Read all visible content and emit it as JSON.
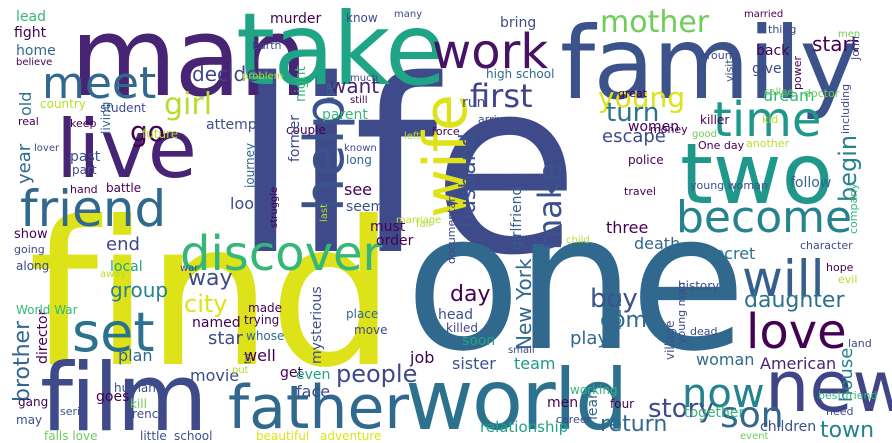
{
  "words": [
    {
      "id": "life",
      "text": "life",
      "color": "#3e4a89"
    },
    {
      "id": "find",
      "text": "find",
      "color": "#dde318"
    },
    {
      "id": "one",
      "text": "one",
      "color": "#31688e"
    },
    {
      "id": "man",
      "text": "man",
      "color": "#482475"
    },
    {
      "id": "take",
      "text": "take",
      "color": "#20a486"
    },
    {
      "id": "family",
      "text": "family",
      "color": "#3b528b"
    },
    {
      "id": "work",
      "text": "work",
      "color": "#471164"
    },
    {
      "id": "world",
      "text": "world",
      "color": "#2c728e"
    },
    {
      "id": "film",
      "text": "film",
      "color": "#3e4a89"
    },
    {
      "id": "father",
      "text": "father",
      "color": "#31688e"
    },
    {
      "id": "two",
      "text": "two",
      "color": "#1f988b"
    },
    {
      "id": "live",
      "text": "live",
      "color": "#482475"
    },
    {
      "id": "wife",
      "text": "wife",
      "color": "#dde318"
    },
    {
      "id": "become",
      "text": "become",
      "color": "#26828e"
    },
    {
      "id": "friend",
      "text": "friend",
      "color": "#31688e"
    },
    {
      "id": "new",
      "text": "new",
      "color": "#414487"
    },
    {
      "id": "meet",
      "text": "meet",
      "color": "#31688e"
    },
    {
      "id": "time",
      "text": "time",
      "color": "#1f988b"
    },
    {
      "id": "help",
      "text": "help",
      "color": "#3b528b"
    },
    {
      "id": "discover",
      "text": "discover",
      "color": "#35b779"
    },
    {
      "id": "set",
      "text": "set",
      "color": "#2c728e"
    },
    {
      "id": "love",
      "text": "love",
      "color": "#440154"
    },
    {
      "id": "will",
      "text": "will",
      "color": "#355f8d"
    },
    {
      "id": "now",
      "text": "now",
      "color": "#26828e"
    },
    {
      "id": "first",
      "text": "first",
      "color": "#414487"
    },
    {
      "id": "mother",
      "text": "mother",
      "color": "#6ece58"
    },
    {
      "id": "make",
      "text": "make",
      "color": "#3b528b"
    },
    {
      "id": "young",
      "text": "young",
      "color": "#dde318"
    },
    {
      "id": "son",
      "text": "son",
      "color": "#31688e"
    },
    {
      "id": "girl",
      "text": "girl",
      "color": "#b5de2b"
    },
    {
      "id": "people",
      "text": "people",
      "color": "#3e4a89"
    },
    {
      "id": "begin",
      "text": "begin",
      "color": "#26828e"
    },
    {
      "id": "daughter",
      "text": "daughter",
      "color": "#2c728e"
    },
    {
      "id": "story",
      "text": "story",
      "color": "#3e4a89"
    },
    {
      "id": "turn",
      "text": "turn",
      "color": "#2c728e"
    },
    {
      "id": "city",
      "text": "city",
      "color": "#dde318"
    },
    {
      "id": "way",
      "text": "way",
      "color": "#3e4a89"
    },
    {
      "id": "group",
      "text": "group",
      "color": "#26828e"
    },
    {
      "id": "brother",
      "text": "brother",
      "color": "#31688e"
    },
    {
      "id": "boy",
      "text": "boy",
      "color": "#3b528b"
    },
    {
      "id": "return",
      "text": "return",
      "color": "#31688e"
    },
    {
      "id": "town",
      "text": "town",
      "color": "#26828e"
    },
    {
      "id": "house",
      "text": "house",
      "color": "#26828e"
    },
    {
      "id": "husband",
      "text": "husband",
      "color": "#3b528b"
    },
    {
      "id": "new-york",
      "text": "New York",
      "color": "#31688e"
    },
    {
      "id": "day",
      "text": "day",
      "color": "#440154"
    },
    {
      "id": "come",
      "text": "come",
      "color": "#31688e"
    },
    {
      "id": "woman",
      "text": "woman",
      "color": "#31688e"
    },
    {
      "id": "want",
      "text": "want",
      "color": "#482475"
    },
    {
      "id": "decide",
      "text": "decide",
      "color": "#414487"
    },
    {
      "id": "escape",
      "text": "escape",
      "color": "#3e4a89"
    },
    {
      "id": "dream",
      "text": "dream",
      "color": "#35b779"
    },
    {
      "id": "start",
      "text": "start",
      "color": "#440154"
    },
    {
      "id": "end",
      "text": "end",
      "color": "#414487"
    },
    {
      "id": "go",
      "text": "go",
      "color": "#440154"
    },
    {
      "id": "movie",
      "text": "movie",
      "color": "#3e4a89"
    },
    {
      "id": "star",
      "text": "star",
      "color": "#3e4a89"
    },
    {
      "id": "well",
      "text": "well",
      "color": "#440154"
    },
    {
      "id": "job",
      "text": "job",
      "color": "#440154"
    },
    {
      "id": "sister",
      "text": "sister",
      "color": "#3b528b"
    },
    {
      "id": "team",
      "text": "team",
      "color": "#1f988b"
    },
    {
      "id": "play",
      "text": "play",
      "color": "#31688e"
    },
    {
      "id": "soon",
      "text": "soon",
      "color": "#20a486"
    },
    {
      "id": "men",
      "text": "men",
      "color": "#440154"
    },
    {
      "id": "goes",
      "text": "goes",
      "color": "#440154"
    },
    {
      "id": "plan",
      "text": "plan",
      "color": "#31688e"
    },
    {
      "id": "get",
      "text": "get",
      "color": "#440154"
    },
    {
      "id": "even",
      "text": "even",
      "color": "#20a486"
    },
    {
      "id": "face",
      "text": "face",
      "color": "#3e4a89"
    },
    {
      "id": "mysterious",
      "text": "mysterious",
      "color": "#3b528b"
    },
    {
      "id": "relationship",
      "text": "relationship",
      "color": "#20a486"
    },
    {
      "id": "together",
      "text": "together",
      "color": "#35b779"
    },
    {
      "id": "children",
      "text": "children",
      "color": "#3b528b"
    },
    {
      "id": "learn",
      "text": "learn",
      "color": "#31688e"
    },
    {
      "id": "head",
      "text": "head",
      "color": "#3b528b"
    },
    {
      "id": "killed",
      "text": "killed",
      "color": "#3e4a89"
    },
    {
      "id": "leave",
      "text": "leave",
      "color": "#31688e"
    },
    {
      "id": "death",
      "text": "death",
      "color": "#31688e"
    },
    {
      "id": "secret",
      "text": "secret",
      "color": "#2c728e"
    },
    {
      "id": "american",
      "text": "American",
      "color": "#482475"
    },
    {
      "id": "follow",
      "text": "follow",
      "color": "#31688e"
    },
    {
      "id": "three",
      "text": "three",
      "color": "#440154"
    },
    {
      "id": "girlfriend",
      "text": "girlfriend",
      "color": "#355f8d"
    },
    {
      "id": "must",
      "text": "must",
      "color": "#440154"
    },
    {
      "id": "seem",
      "text": "seem",
      "color": "#3b528b"
    },
    {
      "id": "see",
      "text": "see",
      "color": "#440154"
    },
    {
      "id": "look",
      "text": "look",
      "color": "#3e4a89"
    },
    {
      "id": "year",
      "text": "year",
      "color": "#31688e"
    },
    {
      "id": "old",
      "text": "old",
      "color": "#2c728e"
    },
    {
      "id": "past",
      "text": "past",
      "color": "#3b528b"
    },
    {
      "id": "home",
      "text": "home",
      "color": "#31688e"
    },
    {
      "id": "fight",
      "text": "fight",
      "color": "#440154"
    },
    {
      "id": "lead",
      "text": "lead",
      "color": "#35b779"
    },
    {
      "id": "murder",
      "text": "murder",
      "color": "#440154"
    },
    {
      "id": "know",
      "text": "know",
      "color": "#3e4a89"
    },
    {
      "id": "bring",
      "text": "bring",
      "color": "#3e4a89"
    },
    {
      "id": "back",
      "text": "back",
      "color": "#440154"
    },
    {
      "id": "give",
      "text": "give",
      "color": "#3e4a89"
    },
    {
      "id": "women",
      "text": "women",
      "color": "#440154"
    },
    {
      "id": "run",
      "text": "run",
      "color": "#3e4a89"
    },
    {
      "id": "parent",
      "text": "parent",
      "color": "#35b779"
    },
    {
      "id": "couple",
      "text": "couple",
      "color": "#440154"
    },
    {
      "id": "attempt",
      "text": "attempt",
      "color": "#3b528b"
    },
    {
      "id": "former",
      "text": "former",
      "color": "#3e4a89"
    },
    {
      "id": "long",
      "text": "long",
      "color": "#31688e"
    },
    {
      "id": "use",
      "text": "use",
      "color": "#31688e"
    },
    {
      "id": "night",
      "text": "night",
      "color": "#35b779"
    },
    {
      "id": "local",
      "text": "local",
      "color": "#20a486"
    },
    {
      "id": "named",
      "text": "named",
      "color": "#440154"
    },
    {
      "id": "made",
      "text": "made",
      "color": "#440154"
    },
    {
      "id": "trying",
      "text": "trying",
      "color": "#440154"
    },
    {
      "id": "whose",
      "text": "whose",
      "color": "#31688e"
    },
    {
      "id": "place",
      "text": "place",
      "color": "#31688e"
    },
    {
      "id": "move",
      "text": "move",
      "color": "#3e4a89"
    },
    {
      "id": "director",
      "text": "director",
      "color": "#440154"
    },
    {
      "id": "police",
      "text": "police",
      "color": "#440154"
    },
    {
      "id": "high-school",
      "text": "high school",
      "color": "#31688e"
    },
    {
      "id": "student",
      "text": "student",
      "color": "#3e4a89"
    },
    {
      "id": "country",
      "text": "country",
      "color": "#b5de2b"
    },
    {
      "id": "keep",
      "text": "keep",
      "color": "#440154"
    },
    {
      "id": "living",
      "text": "living",
      "color": "#31688e"
    },
    {
      "id": "battle",
      "text": "battle",
      "color": "#440154"
    },
    {
      "id": "journey",
      "text": "journey",
      "color": "#31688e"
    },
    {
      "id": "hand",
      "text": "hand",
      "color": "#440154"
    },
    {
      "id": "part",
      "text": "part",
      "color": "#3b528b"
    },
    {
      "id": "future",
      "text": "future",
      "color": "#b5de2b"
    },
    {
      "id": "real",
      "text": "real",
      "color": "#440154"
    },
    {
      "id": "show",
      "text": "show",
      "color": "#440154"
    },
    {
      "id": "going",
      "text": "going",
      "color": "#3e4a89"
    },
    {
      "id": "along",
      "text": "along",
      "color": "#3e4a89"
    },
    {
      "id": "human",
      "text": "human",
      "color": "#3b528b"
    },
    {
      "id": "gang",
      "text": "gang",
      "color": "#440154"
    },
    {
      "id": "may",
      "text": "may",
      "color": "#3b528b"
    },
    {
      "id": "serie",
      "text": "serie",
      "color": "#3b528b"
    },
    {
      "id": "falls-love",
      "text": "falls love",
      "color": "#6ece58"
    },
    {
      "id": "little",
      "text": "little",
      "color": "#3b528b"
    },
    {
      "id": "school",
      "text": "school",
      "color": "#3b528b"
    },
    {
      "id": "beautiful",
      "text": "beautiful",
      "color": "#dde318"
    },
    {
      "id": "adventure",
      "text": "adventure",
      "color": "#dde318"
    },
    {
      "id": "french",
      "text": "French",
      "color": "#3e4a89"
    },
    {
      "id": "world-war",
      "text": "World War",
      "color": "#35b779"
    },
    {
      "id": "kill",
      "text": "kill",
      "color": "#6ece58"
    },
    {
      "id": "career",
      "text": "career",
      "color": "#3e4a89"
    },
    {
      "id": "working",
      "text": "working",
      "color": "#35b779"
    },
    {
      "id": "four",
      "text": "four",
      "color": "#440154"
    },
    {
      "id": "best-friend",
      "text": "best friend",
      "color": "#35b779"
    },
    {
      "id": "need",
      "text": "need",
      "color": "#3e4a89"
    },
    {
      "id": "event",
      "text": "event",
      "color": "#6ece58"
    },
    {
      "id": "land",
      "text": "land",
      "color": "#3e4a89"
    },
    {
      "id": "dead",
      "text": "dead",
      "color": "#3e4a89"
    },
    {
      "id": "village",
      "text": "village",
      "color": "#3b528b"
    },
    {
      "id": "young-man",
      "text": "young man",
      "color": "#3e4a89"
    },
    {
      "id": "hope",
      "text": "hope",
      "color": "#440154"
    },
    {
      "id": "evil",
      "text": "evil",
      "color": "#b5de2b"
    },
    {
      "id": "company",
      "text": "company",
      "color": "#35b779"
    },
    {
      "id": "character",
      "text": "character",
      "color": "#3e4a89"
    },
    {
      "id": "history",
      "text": "history",
      "color": "#3b528b"
    },
    {
      "id": "travel",
      "text": "travel",
      "color": "#440154"
    },
    {
      "id": "young-woman",
      "text": "young woman",
      "color": "#3b528b"
    },
    {
      "id": "one-day",
      "text": "One day",
      "color": "#440154"
    },
    {
      "id": "another",
      "text": "another",
      "color": "#b5de2b"
    },
    {
      "id": "kid",
      "text": "kid",
      "color": "#b5de2b"
    },
    {
      "id": "killer",
      "text": "killer",
      "color": "#440154"
    },
    {
      "id": "good",
      "text": "good",
      "color": "#6ece58"
    },
    {
      "id": "money",
      "text": "money",
      "color": "#440154"
    },
    {
      "id": "great",
      "text": "great",
      "color": "#440154"
    },
    {
      "id": "visit",
      "text": "visit",
      "color": "#3b528b"
    },
    {
      "id": "power",
      "text": "power",
      "color": "#440154"
    },
    {
      "id": "callee",
      "text": "callee",
      "color": "#6ece58"
    },
    {
      "id": "doctor",
      "text": "doctor",
      "color": "#6ece58"
    },
    {
      "id": "including",
      "text": "including",
      "color": "#3e4a89"
    },
    {
      "id": "john",
      "text": "John",
      "color": "#3e4a89"
    },
    {
      "id": "thing",
      "text": "thing",
      "color": "#3e4a89"
    },
    {
      "id": "around",
      "text": "around",
      "color": "#3e4a89"
    },
    {
      "id": "married",
      "text": "married",
      "color": "#440154"
    },
    {
      "id": "many",
      "text": "many",
      "color": "#3e4a89"
    },
    {
      "id": "earth",
      "text": "Earth",
      "color": "#3e4a89"
    },
    {
      "id": "believe",
      "text": "believe",
      "color": "#440154"
    },
    {
      "id": "problem",
      "text": "problem",
      "color": "#b5de2b"
    },
    {
      "id": "much",
      "text": "much",
      "color": "#3e4a89"
    },
    {
      "id": "still",
      "text": "still",
      "color": "#440154"
    },
    {
      "id": "left",
      "text": "left",
      "color": "#b5de2b"
    },
    {
      "id": "force",
      "text": "force",
      "color": "#440154"
    },
    {
      "id": "arrive",
      "text": "arrive",
      "color": "#3e4a89"
    },
    {
      "id": "known",
      "text": "known",
      "color": "#3e4a89"
    },
    {
      "id": "struggle",
      "text": "struggle",
      "color": "#440154"
    },
    {
      "id": "last",
      "text": "last",
      "color": "#b5de2b"
    },
    {
      "id": "marriage",
      "text": "marriage",
      "color": "#b5de2b"
    },
    {
      "id": "fall",
      "text": "fall",
      "color": "#b5de2b"
    },
    {
      "id": "documentary",
      "text": "documentary",
      "color": "#3e4a89"
    },
    {
      "id": "order",
      "text": "order",
      "color": "#440154"
    },
    {
      "id": "small",
      "text": "small",
      "color": "#3e4a89"
    },
    {
      "id": "child",
      "text": "child",
      "color": "#b5de2b"
    },
    {
      "id": "lover",
      "text": "lover",
      "color": "#3e4a89"
    },
    {
      "id": "war",
      "text": "war",
      "color": "#3e4a89"
    },
    {
      "id": "away",
      "text": "away",
      "color": "#b5de2b"
    },
    {
      "id": "put",
      "text": "put",
      "color": "#b5de2b"
    },
    {
      "id": "tri",
      "text": "tri",
      "color": "#3b528b"
    },
    {
      "id": "men2",
      "text": "men",
      "color": "#6ece58"
    }
  ]
}
